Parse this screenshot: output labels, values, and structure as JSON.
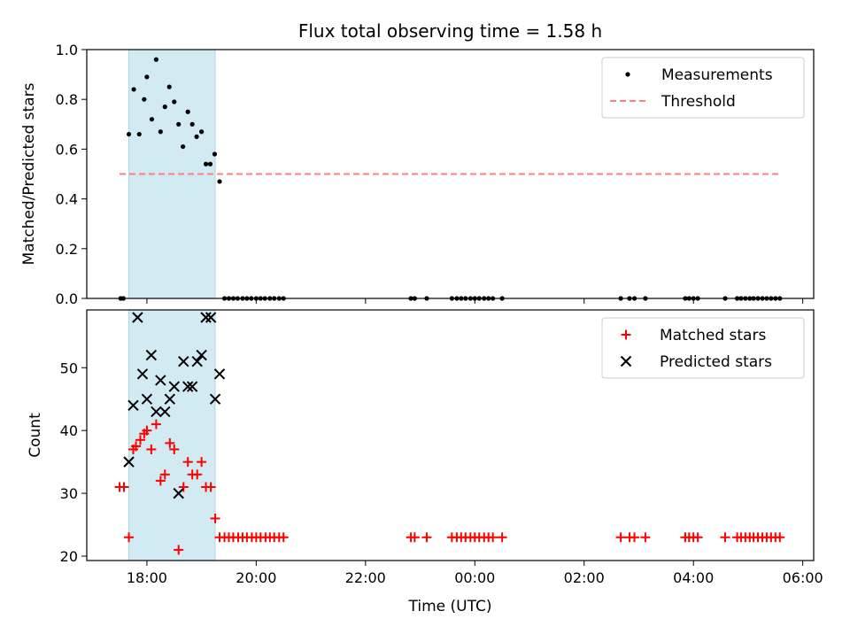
{
  "chart_data": [
    {
      "type": "scatter",
      "title": "Flux total observing time = 1.58 h",
      "xlabel": "",
      "ylabel": "Matched/Predicted stars",
      "xlim": [
        16.9,
        30.2
      ],
      "ylim": [
        0.0,
        1.0
      ],
      "x_ticks": [
        18,
        20,
        22,
        24,
        26,
        28,
        30
      ],
      "y_ticks": [
        0.0,
        0.2,
        0.4,
        0.6,
        0.8,
        1.0
      ],
      "y_tick_labels": [
        "0.0",
        "0.2",
        "0.4",
        "0.6",
        "0.8",
        "1.0"
      ],
      "legend": [
        "Measurements",
        "Threshold"
      ],
      "legend_position": "top-right",
      "shaded_interval": [
        17.67,
        19.25
      ],
      "threshold": {
        "y": 0.5,
        "x_range": [
          17.5,
          29.6
        ],
        "color": "#ff7f7f"
      },
      "series": [
        {
          "name": "Measurements",
          "color": "#000000",
          "points": [
            [
              17.52,
              0.0
            ],
            [
              17.57,
              0.0
            ],
            [
              17.67,
              0.66
            ],
            [
              17.76,
              0.84
            ],
            [
              17.86,
              0.66
            ],
            [
              17.95,
              0.8
            ],
            [
              18.0,
              0.89
            ],
            [
              18.09,
              0.72
            ],
            [
              18.17,
              0.96
            ],
            [
              18.25,
              0.67
            ],
            [
              18.33,
              0.77
            ],
            [
              18.41,
              0.85
            ],
            [
              18.5,
              0.79
            ],
            [
              18.58,
              0.7
            ],
            [
              18.66,
              0.61
            ],
            [
              18.75,
              0.75
            ],
            [
              18.83,
              0.7
            ],
            [
              18.91,
              0.65
            ],
            [
              19.0,
              0.67
            ],
            [
              19.08,
              0.54
            ],
            [
              19.16,
              0.54
            ],
            [
              19.24,
              0.58
            ],
            [
              19.33,
              0.47
            ],
            [
              19.42,
              0.0
            ],
            [
              19.5,
              0.0
            ],
            [
              19.58,
              0.0
            ],
            [
              19.66,
              0.0
            ],
            [
              19.75,
              0.0
            ],
            [
              19.83,
              0.0
            ],
            [
              19.91,
              0.0
            ],
            [
              20.0,
              0.0
            ],
            [
              20.08,
              0.0
            ],
            [
              20.16,
              0.0
            ],
            [
              20.25,
              0.0
            ],
            [
              20.33,
              0.0
            ],
            [
              20.42,
              0.0
            ],
            [
              20.5,
              0.0
            ],
            [
              22.83,
              0.0
            ],
            [
              22.9,
              0.0
            ],
            [
              23.12,
              0.0
            ],
            [
              23.58,
              0.0
            ],
            [
              23.67,
              0.0
            ],
            [
              23.75,
              0.0
            ],
            [
              23.83,
              0.0
            ],
            [
              23.92,
              0.0
            ],
            [
              24.0,
              0.0
            ],
            [
              24.08,
              0.0
            ],
            [
              24.17,
              0.0
            ],
            [
              24.25,
              0.0
            ],
            [
              24.33,
              0.0
            ],
            [
              24.5,
              0.0
            ],
            [
              26.67,
              0.0
            ],
            [
              26.83,
              0.0
            ],
            [
              26.92,
              0.0
            ],
            [
              27.12,
              0.0
            ],
            [
              27.85,
              0.0
            ],
            [
              27.92,
              0.0
            ],
            [
              28.0,
              0.0
            ],
            [
              28.08,
              0.0
            ],
            [
              28.58,
              0.0
            ],
            [
              28.8,
              0.0
            ],
            [
              28.87,
              0.0
            ],
            [
              28.95,
              0.0
            ],
            [
              29.03,
              0.0
            ],
            [
              29.1,
              0.0
            ],
            [
              29.18,
              0.0
            ],
            [
              29.26,
              0.0
            ],
            [
              29.34,
              0.0
            ],
            [
              29.42,
              0.0
            ],
            [
              29.5,
              0.0
            ],
            [
              29.58,
              0.0
            ]
          ]
        }
      ]
    },
    {
      "type": "scatter",
      "title": "",
      "xlabel": "Time (UTC)",
      "ylabel": "Count",
      "xlim": [
        16.9,
        30.2
      ],
      "ylim": [
        19.3,
        59.2
      ],
      "x_ticks": [
        18,
        20,
        22,
        24,
        26,
        28,
        30
      ],
      "x_tick_labels": [
        "18:00",
        "20:00",
        "22:00",
        "00:00",
        "02:00",
        "04:00",
        "06:00"
      ],
      "y_ticks": [
        20,
        30,
        40,
        50
      ],
      "y_tick_labels": [
        "20",
        "30",
        "40",
        "50"
      ],
      "legend": [
        "Matched stars",
        "Predicted stars"
      ],
      "legend_position": "top-right",
      "shaded_interval": [
        17.67,
        19.25
      ],
      "series": [
        {
          "name": "Matched stars",
          "marker": "+",
          "color": "#ff0000",
          "points": [
            [
              17.5,
              31
            ],
            [
              17.58,
              31
            ],
            [
              17.67,
              23
            ],
            [
              17.75,
              37
            ],
            [
              17.8,
              37.5
            ],
            [
              17.88,
              38.5
            ],
            [
              17.95,
              39.5
            ],
            [
              18.0,
              40
            ],
            [
              18.08,
              37
            ],
            [
              18.17,
              41
            ],
            [
              18.25,
              32
            ],
            [
              18.33,
              33
            ],
            [
              18.42,
              38
            ],
            [
              18.5,
              37
            ],
            [
              18.58,
              21
            ],
            [
              18.67,
              31
            ],
            [
              18.75,
              35
            ],
            [
              18.83,
              33
            ],
            [
              18.92,
              33
            ],
            [
              19.0,
              35
            ],
            [
              19.08,
              31
            ],
            [
              19.17,
              31
            ],
            [
              19.25,
              26
            ],
            [
              19.33,
              23
            ],
            [
              19.42,
              23
            ],
            [
              19.5,
              23
            ],
            [
              19.58,
              23
            ],
            [
              19.67,
              23
            ],
            [
              19.75,
              23
            ],
            [
              19.83,
              23
            ],
            [
              19.92,
              23
            ],
            [
              20.0,
              23
            ],
            [
              20.08,
              23
            ],
            [
              20.17,
              23
            ],
            [
              20.25,
              23
            ],
            [
              20.33,
              23
            ],
            [
              20.42,
              23
            ],
            [
              20.5,
              23
            ],
            [
              22.83,
              23
            ],
            [
              22.9,
              23
            ],
            [
              23.12,
              23
            ],
            [
              23.58,
              23
            ],
            [
              23.67,
              23
            ],
            [
              23.75,
              23
            ],
            [
              23.83,
              23
            ],
            [
              23.92,
              23
            ],
            [
              24.0,
              23
            ],
            [
              24.08,
              23
            ],
            [
              24.17,
              23
            ],
            [
              24.25,
              23
            ],
            [
              24.33,
              23
            ],
            [
              24.5,
              23
            ],
            [
              26.67,
              23
            ],
            [
              26.83,
              23
            ],
            [
              26.92,
              23
            ],
            [
              27.12,
              23
            ],
            [
              27.85,
              23
            ],
            [
              27.92,
              23
            ],
            [
              28.0,
              23
            ],
            [
              28.08,
              23
            ],
            [
              28.58,
              23
            ],
            [
              28.8,
              23
            ],
            [
              28.87,
              23
            ],
            [
              28.95,
              23
            ],
            [
              29.03,
              23
            ],
            [
              29.1,
              23
            ],
            [
              29.18,
              23
            ],
            [
              29.26,
              23
            ],
            [
              29.34,
              23
            ],
            [
              29.42,
              23
            ],
            [
              29.5,
              23
            ],
            [
              29.58,
              23
            ]
          ]
        },
        {
          "name": "Predicted stars",
          "marker": "x",
          "color": "#000000",
          "points": [
            [
              17.67,
              35
            ],
            [
              17.75,
              44
            ],
            [
              17.83,
              58
            ],
            [
              17.92,
              49
            ],
            [
              18.0,
              45
            ],
            [
              18.08,
              52
            ],
            [
              18.17,
              43
            ],
            [
              18.25,
              48
            ],
            [
              18.33,
              43
            ],
            [
              18.42,
              45
            ],
            [
              18.5,
              47
            ],
            [
              18.58,
              30
            ],
            [
              18.67,
              51
            ],
            [
              18.75,
              47
            ],
            [
              18.83,
              47
            ],
            [
              18.92,
              51
            ],
            [
              19.0,
              52
            ],
            [
              19.08,
              58
            ],
            [
              19.17,
              58
            ],
            [
              19.25,
              45
            ],
            [
              19.33,
              49
            ]
          ]
        }
      ]
    }
  ]
}
